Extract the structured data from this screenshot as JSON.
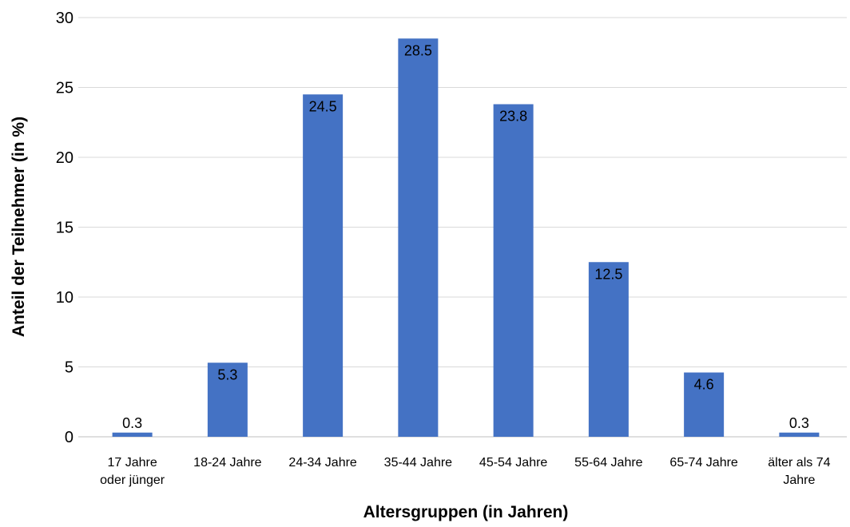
{
  "chart_data": {
    "type": "bar",
    "categories": [
      [
        "17 Jahre",
        "oder jünger"
      ],
      [
        "18-24 Jahre"
      ],
      [
        "24-34 Jahre"
      ],
      [
        "35-44 Jahre"
      ],
      [
        "45-54 Jahre"
      ],
      [
        "55-64 Jahre"
      ],
      [
        "65-74 Jahre"
      ],
      [
        "älter als 74",
        "Jahre"
      ]
    ],
    "values": [
      0.3,
      5.3,
      24.5,
      28.5,
      23.8,
      12.5,
      4.6,
      0.3
    ],
    "data_labels": [
      "0.3",
      "5.3",
      "24.5",
      "28.5",
      "23.8",
      "12.5",
      "4.6",
      "0.3"
    ],
    "xlabel": "Altersgruppen (in Jahren)",
    "ylabel": "Anteil der Teilnehmer (in %)",
    "ylim": [
      0,
      30
    ],
    "yticks": [
      0,
      5,
      10,
      15,
      20,
      25,
      30
    ],
    "grid": true,
    "bar_color": "#4472C4",
    "grid_color": "#D9D9D9"
  }
}
